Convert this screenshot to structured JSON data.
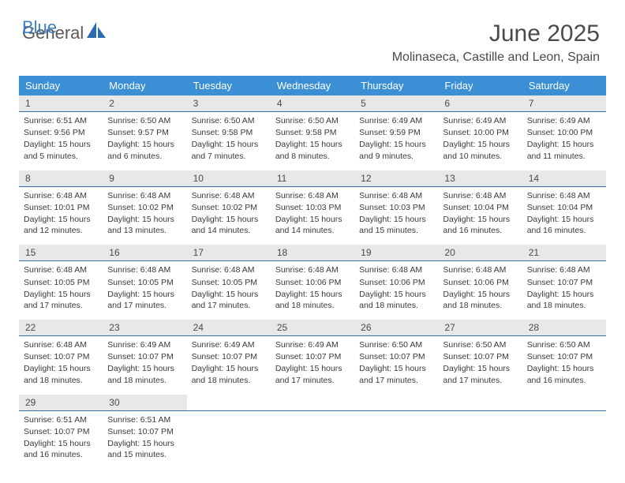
{
  "logo": {
    "text1": "General",
    "text2": "Blue"
  },
  "title": "June 2025",
  "location": "Molinaseca, Castille and Leon, Spain",
  "colors": {
    "header_bg": "#3b8fd4",
    "header_text": "#ffffff",
    "daynum_bg": "#e8e8e8",
    "daynum_border": "#3b6fa4",
    "body_text": "#3a3a3a",
    "title_text": "#4a4a4a",
    "logo_gray": "#5a5a5a",
    "logo_blue": "#3b7fc4",
    "page_bg": "#ffffff"
  },
  "day_labels": [
    "Sunday",
    "Monday",
    "Tuesday",
    "Wednesday",
    "Thursday",
    "Friday",
    "Saturday"
  ],
  "weeks": [
    {
      "nums": [
        "1",
        "2",
        "3",
        "4",
        "5",
        "6",
        "7"
      ],
      "cells": [
        {
          "sunrise": "Sunrise: 6:51 AM",
          "sunset": "Sunset: 9:56 PM",
          "day": "Daylight: 15 hours and 5 minutes."
        },
        {
          "sunrise": "Sunrise: 6:50 AM",
          "sunset": "Sunset: 9:57 PM",
          "day": "Daylight: 15 hours and 6 minutes."
        },
        {
          "sunrise": "Sunrise: 6:50 AM",
          "sunset": "Sunset: 9:58 PM",
          "day": "Daylight: 15 hours and 7 minutes."
        },
        {
          "sunrise": "Sunrise: 6:50 AM",
          "sunset": "Sunset: 9:58 PM",
          "day": "Daylight: 15 hours and 8 minutes."
        },
        {
          "sunrise": "Sunrise: 6:49 AM",
          "sunset": "Sunset: 9:59 PM",
          "day": "Daylight: 15 hours and 9 minutes."
        },
        {
          "sunrise": "Sunrise: 6:49 AM",
          "sunset": "Sunset: 10:00 PM",
          "day": "Daylight: 15 hours and 10 minutes."
        },
        {
          "sunrise": "Sunrise: 6:49 AM",
          "sunset": "Sunset: 10:00 PM",
          "day": "Daylight: 15 hours and 11 minutes."
        }
      ]
    },
    {
      "nums": [
        "8",
        "9",
        "10",
        "11",
        "12",
        "13",
        "14"
      ],
      "cells": [
        {
          "sunrise": "Sunrise: 6:48 AM",
          "sunset": "Sunset: 10:01 PM",
          "day": "Daylight: 15 hours and 12 minutes."
        },
        {
          "sunrise": "Sunrise: 6:48 AM",
          "sunset": "Sunset: 10:02 PM",
          "day": "Daylight: 15 hours and 13 minutes."
        },
        {
          "sunrise": "Sunrise: 6:48 AM",
          "sunset": "Sunset: 10:02 PM",
          "day": "Daylight: 15 hours and 14 minutes."
        },
        {
          "sunrise": "Sunrise: 6:48 AM",
          "sunset": "Sunset: 10:03 PM",
          "day": "Daylight: 15 hours and 14 minutes."
        },
        {
          "sunrise": "Sunrise: 6:48 AM",
          "sunset": "Sunset: 10:03 PM",
          "day": "Daylight: 15 hours and 15 minutes."
        },
        {
          "sunrise": "Sunrise: 6:48 AM",
          "sunset": "Sunset: 10:04 PM",
          "day": "Daylight: 15 hours and 16 minutes."
        },
        {
          "sunrise": "Sunrise: 6:48 AM",
          "sunset": "Sunset: 10:04 PM",
          "day": "Daylight: 15 hours and 16 minutes."
        }
      ]
    },
    {
      "nums": [
        "15",
        "16",
        "17",
        "18",
        "19",
        "20",
        "21"
      ],
      "cells": [
        {
          "sunrise": "Sunrise: 6:48 AM",
          "sunset": "Sunset: 10:05 PM",
          "day": "Daylight: 15 hours and 17 minutes."
        },
        {
          "sunrise": "Sunrise: 6:48 AM",
          "sunset": "Sunset: 10:05 PM",
          "day": "Daylight: 15 hours and 17 minutes."
        },
        {
          "sunrise": "Sunrise: 6:48 AM",
          "sunset": "Sunset: 10:05 PM",
          "day": "Daylight: 15 hours and 17 minutes."
        },
        {
          "sunrise": "Sunrise: 6:48 AM",
          "sunset": "Sunset: 10:06 PM",
          "day": "Daylight: 15 hours and 18 minutes."
        },
        {
          "sunrise": "Sunrise: 6:48 AM",
          "sunset": "Sunset: 10:06 PM",
          "day": "Daylight: 15 hours and 18 minutes."
        },
        {
          "sunrise": "Sunrise: 6:48 AM",
          "sunset": "Sunset: 10:06 PM",
          "day": "Daylight: 15 hours and 18 minutes."
        },
        {
          "sunrise": "Sunrise: 6:48 AM",
          "sunset": "Sunset: 10:07 PM",
          "day": "Daylight: 15 hours and 18 minutes."
        }
      ]
    },
    {
      "nums": [
        "22",
        "23",
        "24",
        "25",
        "26",
        "27",
        "28"
      ],
      "cells": [
        {
          "sunrise": "Sunrise: 6:48 AM",
          "sunset": "Sunset: 10:07 PM",
          "day": "Daylight: 15 hours and 18 minutes."
        },
        {
          "sunrise": "Sunrise: 6:49 AM",
          "sunset": "Sunset: 10:07 PM",
          "day": "Daylight: 15 hours and 18 minutes."
        },
        {
          "sunrise": "Sunrise: 6:49 AM",
          "sunset": "Sunset: 10:07 PM",
          "day": "Daylight: 15 hours and 18 minutes."
        },
        {
          "sunrise": "Sunrise: 6:49 AM",
          "sunset": "Sunset: 10:07 PM",
          "day": "Daylight: 15 hours and 17 minutes."
        },
        {
          "sunrise": "Sunrise: 6:50 AM",
          "sunset": "Sunset: 10:07 PM",
          "day": "Daylight: 15 hours and 17 minutes."
        },
        {
          "sunrise": "Sunrise: 6:50 AM",
          "sunset": "Sunset: 10:07 PM",
          "day": "Daylight: 15 hours and 17 minutes."
        },
        {
          "sunrise": "Sunrise: 6:50 AM",
          "sunset": "Sunset: 10:07 PM",
          "day": "Daylight: 15 hours and 16 minutes."
        }
      ]
    },
    {
      "nums": [
        "29",
        "30",
        "",
        "",
        "",
        "",
        ""
      ],
      "cells": [
        {
          "sunrise": "Sunrise: 6:51 AM",
          "sunset": "Sunset: 10:07 PM",
          "day": "Daylight: 15 hours and 16 minutes."
        },
        {
          "sunrise": "Sunrise: 6:51 AM",
          "sunset": "Sunset: 10:07 PM",
          "day": "Daylight: 15 hours and 15 minutes."
        },
        null,
        null,
        null,
        null,
        null
      ]
    }
  ]
}
